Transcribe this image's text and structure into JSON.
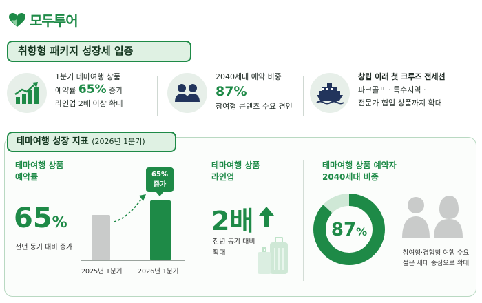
{
  "brand": {
    "name": "모두투어",
    "color": "#1e8a47"
  },
  "headline": "취향형 패키지 성장세 입증",
  "stats": [
    {
      "icon": "growth-chart-icon",
      "line1": "1분기 테마여행 상품",
      "line2_pre": "예약률 ",
      "line2_big": "65%",
      "line2_post": " 증가",
      "line3": "라인업 2배 이상 확대"
    },
    {
      "icon": "people-icon",
      "line1": "2040세대 예약 비중",
      "big": "87%",
      "line3": "참여형 콘텐츠 수요 견인"
    },
    {
      "icon": "cruise-ship-icon",
      "line1": "창립 이래 첫 크루즈 전세선",
      "line2": "파크골프 · 특수지역 ·",
      "line3": "전문가 협업 상품까지 확대"
    }
  ],
  "panel": {
    "title": "테마여행 성장 지표",
    "title_sub": "(2026년 1분기)",
    "sec1": {
      "title_l1": "테마여행 상품",
      "title_l2": "예약률",
      "big_num": "65",
      "big_unit": "%",
      "caption": "전년 동기 대비 증가"
    },
    "chart_data": {
      "type": "bar",
      "categories": [
        "2025년 1분기",
        "2026년 1분기"
      ],
      "values": [
        100,
        165
      ],
      "annotation": "65% 증가",
      "annotation_l1": "65%",
      "annotation_l2": "증가"
    },
    "sec2": {
      "title_l1": "테마여행 상품",
      "title_l2": "라인업",
      "big": "2배",
      "caption_l1": "전년 동기 대비",
      "caption_l2": "확대"
    },
    "sec3": {
      "title_l1": "테마여행 상품 예약자",
      "title_l2": "2040세대 비중",
      "donut_value": 87,
      "donut_num": "87",
      "donut_unit": "%",
      "caption_l1": "참여형·경험형 여행 수요",
      "caption_l2": "젊은 세대 중심으로 확대"
    }
  },
  "colors": {
    "accent": "#1e8a47",
    "accent_light": "#cfe8d6",
    "grey": "#c9cbca"
  }
}
